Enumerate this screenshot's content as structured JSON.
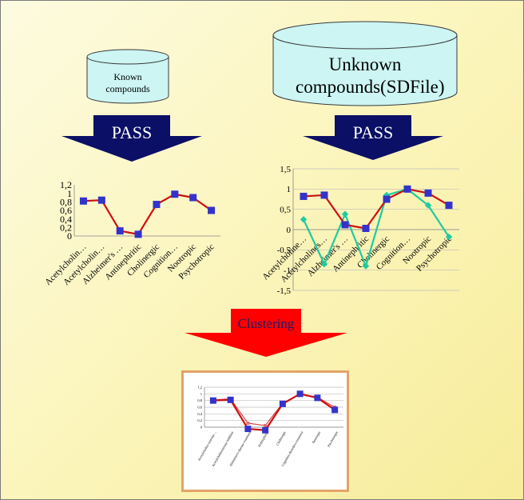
{
  "known_db": {
    "label": "Known compounds"
  },
  "unknown_db": {
    "label": "Unknown compounds(SDFile)"
  },
  "arrows": {
    "left_label": "PASS",
    "right_label": "PASS",
    "cluster_label": "Clustering"
  },
  "colors": {
    "cylinder_fill": "#ccf5f3",
    "pass_arrow": "#0b0f66",
    "cluster_arrow": "#ff0000",
    "series_red": "#cc1111",
    "series_green": "#1ecba0",
    "marker_blue": "#3333cc",
    "frame_border": "#e3a468"
  },
  "chart_data": [
    {
      "type": "line",
      "categories": [
        "Acetylcholin…",
        "Acetylcholin…",
        "Alzheimer's …",
        "Antinephritic",
        "Cholinergic",
        "Cognition…",
        "Nootropic",
        "Psychotropic"
      ],
      "series": [
        {
          "values": [
            0.82,
            0.84,
            0.12,
            0.04,
            0.74,
            0.98,
            0.9,
            0.6
          ]
        }
      ],
      "ylim": [
        0,
        1.2
      ],
      "yticks": [
        "0",
        "0,2",
        "0,4",
        "0,6",
        "0,8",
        "1",
        "1,2"
      ],
      "grid": false
    },
    {
      "type": "line",
      "categories": [
        "Acetylcholine…",
        "Acetylcholines…",
        "Alzheimer's …",
        "Antinephritic",
        "Cholinergic",
        "Cognition…",
        "Nootropic",
        "Psychotropic"
      ],
      "series": [
        {
          "values": [
            0.82,
            0.85,
            0.12,
            0.03,
            0.75,
            1.0,
            0.9,
            0.6
          ]
        },
        {
          "values": [
            0.25,
            -0.85,
            0.38,
            -0.9,
            0.85,
            1.0,
            0.6,
            -0.18
          ]
        }
      ],
      "ylim": [
        -1.5,
        1.5
      ],
      "yticks": [
        "-1,5",
        "-1",
        "-0,5",
        "0",
        "0,5",
        "1",
        "1,5"
      ],
      "grid": true
    },
    {
      "type": "line",
      "categories": [
        "Acetylcholine esterase…",
        "Acetylcholinesterase inhibitor",
        "Alzheimer's disease treatment",
        "Antinephritic",
        "Cholinergic",
        "Cognition disorders treatment",
        "Nootropic",
        "Psychotropic"
      ],
      "series": [
        {
          "values": [
            0.8,
            0.82,
            -0.05,
            -0.09,
            0.7,
            1.0,
            0.88,
            0.52
          ]
        },
        {
          "values": [
            0.82,
            0.85,
            0.12,
            0.05,
            0.72,
            1.0,
            0.9,
            0.6
          ]
        }
      ],
      "ylim": [
        0,
        1.2
      ],
      "yticks": [
        "0",
        "0,2",
        "0,4",
        "0,6",
        "0,8",
        "1",
        "1,2"
      ],
      "grid": true
    }
  ]
}
